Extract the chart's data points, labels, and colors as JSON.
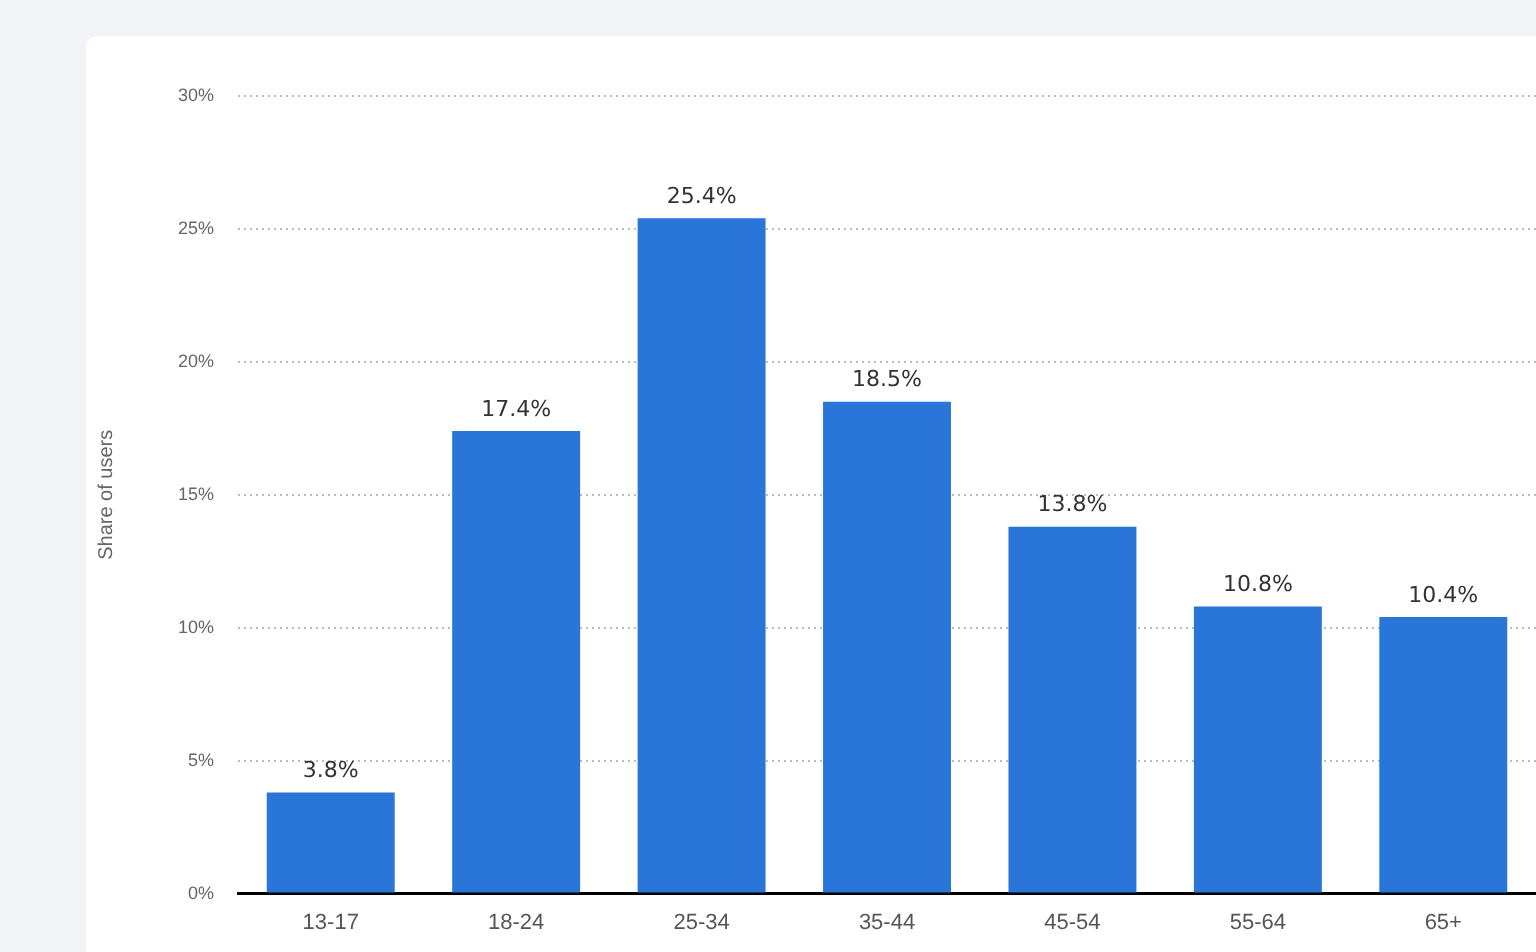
{
  "chart_data": {
    "type": "bar",
    "ylabel": "Share of users",
    "categories": [
      "13-17",
      "18-24",
      "25-34",
      "35-44",
      "45-54",
      "55-64",
      "65+"
    ],
    "values": [
      3.8,
      17.4,
      25.4,
      18.5,
      13.8,
      10.8,
      10.4
    ],
    "value_labels": [
      "3.8%",
      "17.4%",
      "25.4%",
      "18.5%",
      "13.8%",
      "10.8%",
      "10.4%"
    ],
    "color": "#2a76d8",
    "ylim": [
      0,
      30
    ],
    "yticks": [
      {
        "value": 0,
        "label": "0%"
      },
      {
        "value": 5,
        "label": "5%"
      },
      {
        "value": 10,
        "label": "10%"
      },
      {
        "value": 15,
        "label": "15%"
      },
      {
        "value": 20,
        "label": "20%"
      },
      {
        "value": 25,
        "label": "25%"
      },
      {
        "value": 30,
        "label": "30%"
      }
    ],
    "grid": "y",
    "legend": false
  }
}
